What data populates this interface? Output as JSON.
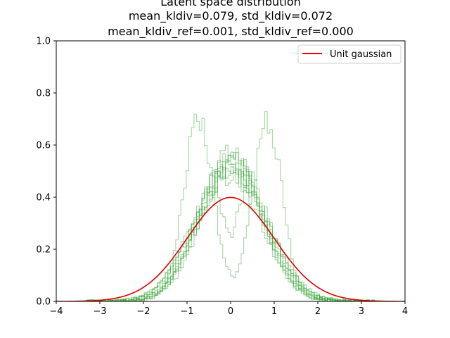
{
  "chart_data": {
    "type": "line",
    "title_lines": [
      "Latent space distribution",
      "mean_kldiv=0.079, std_kldiv=0.072",
      "mean_kldiv_ref=0.001, std_kldiv_ref=0.000"
    ],
    "xlabel": "",
    "ylabel": "",
    "xlim": [
      -4,
      4
    ],
    "ylim": [
      0,
      1
    ],
    "x_ticks": [
      -4,
      -3,
      -2,
      -1,
      0,
      1,
      2,
      3,
      4
    ],
    "x_tick_labels": [
      "−4",
      "−3",
      "−2",
      "−1",
      "0",
      "1",
      "2",
      "3",
      "4"
    ],
    "y_ticks": [
      0,
      0.2,
      0.4,
      0.6,
      0.8,
      1
    ],
    "y_tick_labels": [
      "0.0",
      "0.2",
      "0.4",
      "0.6",
      "0.8",
      "1.0"
    ],
    "grid": false,
    "legend_position": "top-right",
    "reference_curve": {
      "name": "Unit gaussian",
      "color": "#e00000",
      "kind": "normal-pdf",
      "mean": 0,
      "std": 1
    },
    "histogram_style": {
      "color": "#2ca02c",
      "opacity": 0.4,
      "kind": "step"
    },
    "histograms": [
      {
        "shape": "gaussian",
        "mean": -0.05,
        "std": 0.78
      },
      {
        "shape": "gaussian",
        "mean": 0.02,
        "std": 0.74
      },
      {
        "shape": "gaussian",
        "mean": 0.05,
        "std": 0.8
      },
      {
        "shape": "gaussian",
        "mean": -0.1,
        "std": 0.77
      },
      {
        "shape": "gaussian",
        "mean": 0.1,
        "std": 0.72
      },
      {
        "shape": "gaussian",
        "mean": 0.0,
        "std": 0.7
      },
      {
        "shape": "gaussian",
        "mean": -0.02,
        "std": 0.82
      },
      {
        "shape": "gaussian",
        "mean": 0.07,
        "std": 0.76
      },
      {
        "shape": "bimodal",
        "centers": [
          -0.75,
          0.85
        ],
        "std": 0.33,
        "peak": 0.66
      },
      {
        "shape": "dip",
        "mean": 0.0,
        "std": 0.68,
        "dip_depth": 0.55,
        "dip_width": 0.22
      }
    ]
  }
}
